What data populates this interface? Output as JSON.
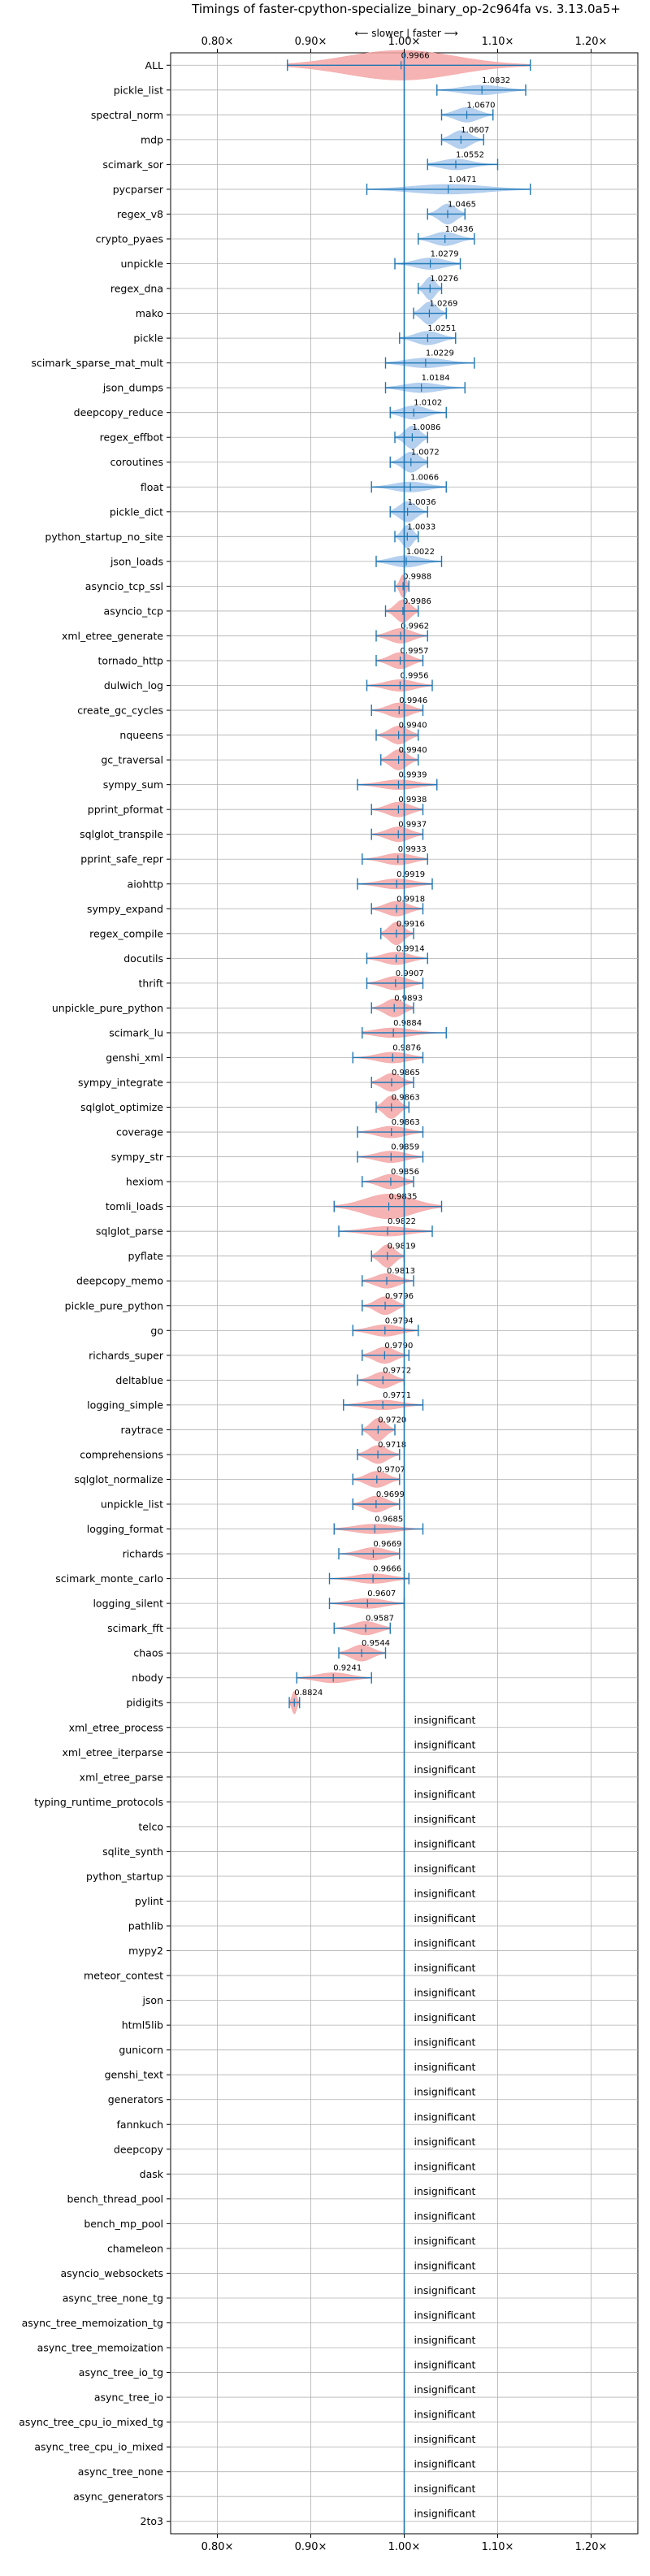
{
  "chart_data": {
    "type": "violin",
    "title": "Timings of faster-cpython-specialize_binary_op-2c964fa vs. 3.13.0a5+",
    "direction_label": "⟵ slower | faster ⟶",
    "xlabel": "",
    "ylabel": "",
    "xlim": [
      0.75,
      1.25
    ],
    "x_ticks": [
      0.8,
      0.9,
      1.0,
      1.1,
      1.2
    ],
    "x_tick_labels": [
      "0.80×",
      "0.90×",
      "1.00×",
      "1.10×",
      "1.20×"
    ],
    "reference_line": 1.0,
    "grid": true,
    "colors": {
      "faster": "#a8c8ec",
      "slower": "#f4a6a6",
      "whisker": "#1f77b4",
      "reference": "#1f77b4",
      "grid": "#b0b0b0"
    },
    "insignificant_label": "insignificant",
    "benchmarks": [
      {
        "name": "ALL",
        "value": 0.9966,
        "label": "0.9966",
        "lo": 0.875,
        "hi": 1.135,
        "width": 0.06
      },
      {
        "name": "pickle_list",
        "value": 1.0832,
        "label": "1.0832",
        "lo": 1.035,
        "hi": 1.13
      },
      {
        "name": "spectral_norm",
        "value": 1.067,
        "label": "1.0670",
        "lo": 1.04,
        "hi": 1.095
      },
      {
        "name": "mdp",
        "value": 1.0607,
        "label": "1.0607",
        "lo": 1.04,
        "hi": 1.085
      },
      {
        "name": "scimark_sor",
        "value": 1.0552,
        "label": "1.0552",
        "lo": 1.025,
        "hi": 1.1
      },
      {
        "name": "pycparser",
        "value": 1.0471,
        "label": "1.0471",
        "lo": 0.96,
        "hi": 1.135
      },
      {
        "name": "regex_v8",
        "value": 1.0465,
        "label": "1.0465",
        "lo": 1.025,
        "hi": 1.065
      },
      {
        "name": "crypto_pyaes",
        "value": 1.0436,
        "label": "1.0436",
        "lo": 1.015,
        "hi": 1.075
      },
      {
        "name": "unpickle",
        "value": 1.0279,
        "label": "1.0279",
        "lo": 0.99,
        "hi": 1.06
      },
      {
        "name": "regex_dna",
        "value": 1.0276,
        "label": "1.0276",
        "lo": 1.015,
        "hi": 1.04
      },
      {
        "name": "mako",
        "value": 1.0269,
        "label": "1.0269",
        "lo": 1.01,
        "hi": 1.045
      },
      {
        "name": "pickle",
        "value": 1.0251,
        "label": "1.0251",
        "lo": 0.995,
        "hi": 1.055
      },
      {
        "name": "scimark_sparse_mat_mult",
        "value": 1.0229,
        "label": "1.0229",
        "lo": 0.98,
        "hi": 1.075
      },
      {
        "name": "json_dumps",
        "value": 1.0184,
        "label": "1.0184",
        "lo": 0.98,
        "hi": 1.065
      },
      {
        "name": "deepcopy_reduce",
        "value": 1.0102,
        "label": "1.0102",
        "lo": 0.985,
        "hi": 1.045
      },
      {
        "name": "regex_effbot",
        "value": 1.0086,
        "label": "1.0086",
        "lo": 0.99,
        "hi": 1.025
      },
      {
        "name": "coroutines",
        "value": 1.0072,
        "label": "1.0072",
        "lo": 0.985,
        "hi": 1.025
      },
      {
        "name": "float",
        "value": 1.0066,
        "label": "1.0066",
        "lo": 0.965,
        "hi": 1.045
      },
      {
        "name": "pickle_dict",
        "value": 1.0036,
        "label": "1.0036",
        "lo": 0.985,
        "hi": 1.025
      },
      {
        "name": "python_startup_no_site",
        "value": 1.0033,
        "label": "1.0033",
        "lo": 0.99,
        "hi": 1.015
      },
      {
        "name": "json_loads",
        "value": 1.0022,
        "label": "1.0022",
        "lo": 0.97,
        "hi": 1.04
      },
      {
        "name": "asyncio_tcp_ssl",
        "value": 0.9988,
        "label": "0.9988",
        "lo": 0.99,
        "hi": 1.005
      },
      {
        "name": "asyncio_tcp",
        "value": 0.9986,
        "label": "0.9986",
        "lo": 0.98,
        "hi": 1.015
      },
      {
        "name": "xml_etree_generate",
        "value": 0.9962,
        "label": "0.9962",
        "lo": 0.97,
        "hi": 1.025
      },
      {
        "name": "tornado_http",
        "value": 0.9957,
        "label": "0.9957",
        "lo": 0.97,
        "hi": 1.02
      },
      {
        "name": "dulwich_log",
        "value": 0.9956,
        "label": "0.9956",
        "lo": 0.96,
        "hi": 1.03
      },
      {
        "name": "create_gc_cycles",
        "value": 0.9946,
        "label": "0.9946",
        "lo": 0.965,
        "hi": 1.02
      },
      {
        "name": "nqueens",
        "value": 0.994,
        "label": "0.9940",
        "lo": 0.97,
        "hi": 1.015
      },
      {
        "name": "gc_traversal",
        "value": 0.994,
        "label": "0.9940",
        "lo": 0.975,
        "hi": 1.015
      },
      {
        "name": "sympy_sum",
        "value": 0.9939,
        "label": "0.9939",
        "lo": 0.95,
        "hi": 1.035
      },
      {
        "name": "pprint_pformat",
        "value": 0.9938,
        "label": "0.9938",
        "lo": 0.965,
        "hi": 1.02
      },
      {
        "name": "sqlglot_transpile",
        "value": 0.9937,
        "label": "0.9937",
        "lo": 0.965,
        "hi": 1.02
      },
      {
        "name": "pprint_safe_repr",
        "value": 0.9933,
        "label": "0.9933",
        "lo": 0.955,
        "hi": 1.025
      },
      {
        "name": "aiohttp",
        "value": 0.9919,
        "label": "0.9919",
        "lo": 0.95,
        "hi": 1.03
      },
      {
        "name": "sympy_expand",
        "value": 0.9918,
        "label": "0.9918",
        "lo": 0.965,
        "hi": 1.02
      },
      {
        "name": "regex_compile",
        "value": 0.9916,
        "label": "0.9916",
        "lo": 0.975,
        "hi": 1.01
      },
      {
        "name": "docutils",
        "value": 0.9914,
        "label": "0.9914",
        "lo": 0.96,
        "hi": 1.025
      },
      {
        "name": "thrift",
        "value": 0.9907,
        "label": "0.9907",
        "lo": 0.96,
        "hi": 1.02
      },
      {
        "name": "unpickle_pure_python",
        "value": 0.9893,
        "label": "0.9893",
        "lo": 0.965,
        "hi": 1.01
      },
      {
        "name": "scimark_lu",
        "value": 0.9884,
        "label": "0.9884",
        "lo": 0.955,
        "hi": 1.045
      },
      {
        "name": "genshi_xml",
        "value": 0.9876,
        "label": "0.9876",
        "lo": 0.945,
        "hi": 1.02
      },
      {
        "name": "sympy_integrate",
        "value": 0.9865,
        "label": "0.9865",
        "lo": 0.965,
        "hi": 1.01
      },
      {
        "name": "sqlglot_optimize",
        "value": 0.9863,
        "label": "0.9863",
        "lo": 0.97,
        "hi": 1.005
      },
      {
        "name": "coverage",
        "value": 0.9863,
        "label": "0.9863",
        "lo": 0.95,
        "hi": 1.02
      },
      {
        "name": "sympy_str",
        "value": 0.9859,
        "label": "0.9859",
        "lo": 0.95,
        "hi": 1.02
      },
      {
        "name": "hexiom",
        "value": 0.9856,
        "label": "0.9856",
        "lo": 0.955,
        "hi": 1.01
      },
      {
        "name": "tomli_loads",
        "value": 0.9835,
        "label": "0.9835",
        "lo": 0.925,
        "hi": 1.04,
        "width": 0.05
      },
      {
        "name": "sqlglot_parse",
        "value": 0.9822,
        "label": "0.9822",
        "lo": 0.93,
        "hi": 1.03
      },
      {
        "name": "pyflate",
        "value": 0.9819,
        "label": "0.9819",
        "lo": 0.965,
        "hi": 1.0
      },
      {
        "name": "deepcopy_memo",
        "value": 0.9813,
        "label": "0.9813",
        "lo": 0.955,
        "hi": 1.01
      },
      {
        "name": "pickle_pure_python",
        "value": 0.9796,
        "label": "0.9796",
        "lo": 0.955,
        "hi": 1.0
      },
      {
        "name": "go",
        "value": 0.9794,
        "label": "0.9794",
        "lo": 0.945,
        "hi": 1.015
      },
      {
        "name": "richards_super",
        "value": 0.979,
        "label": "0.9790",
        "lo": 0.955,
        "hi": 1.005
      },
      {
        "name": "deltablue",
        "value": 0.9772,
        "label": "0.9772",
        "lo": 0.95,
        "hi": 1.0
      },
      {
        "name": "logging_simple",
        "value": 0.9771,
        "label": "0.9771",
        "lo": 0.935,
        "hi": 1.02
      },
      {
        "name": "raytrace",
        "value": 0.972,
        "label": "0.9720",
        "lo": 0.955,
        "hi": 0.99
      },
      {
        "name": "comprehensions",
        "value": 0.9718,
        "label": "0.9718",
        "lo": 0.95,
        "hi": 0.995
      },
      {
        "name": "sqlglot_normalize",
        "value": 0.9707,
        "label": "0.9707",
        "lo": 0.945,
        "hi": 0.995
      },
      {
        "name": "unpickle_list",
        "value": 0.9699,
        "label": "0.9699",
        "lo": 0.945,
        "hi": 0.995
      },
      {
        "name": "logging_format",
        "value": 0.9685,
        "label": "0.9685",
        "lo": 0.925,
        "hi": 1.02
      },
      {
        "name": "richards",
        "value": 0.9669,
        "label": "0.9669",
        "lo": 0.93,
        "hi": 0.995
      },
      {
        "name": "scimark_monte_carlo",
        "value": 0.9666,
        "label": "0.9666",
        "lo": 0.92,
        "hi": 1.005
      },
      {
        "name": "logging_silent",
        "value": 0.9607,
        "label": "0.9607",
        "lo": 0.92,
        "hi": 1.0
      },
      {
        "name": "scimark_fft",
        "value": 0.9587,
        "label": "0.9587",
        "lo": 0.925,
        "hi": 0.985
      },
      {
        "name": "chaos",
        "value": 0.9544,
        "label": "0.9544",
        "lo": 0.93,
        "hi": 0.98
      },
      {
        "name": "nbody",
        "value": 0.9241,
        "label": "0.9241",
        "lo": 0.885,
        "hi": 0.965
      },
      {
        "name": "pidigits",
        "value": 0.8824,
        "label": "0.8824",
        "lo": 0.877,
        "hi": 0.888
      }
    ],
    "insignificant": [
      "xml_etree_process",
      "xml_etree_iterparse",
      "xml_etree_parse",
      "typing_runtime_protocols",
      "telco",
      "sqlite_synth",
      "python_startup",
      "pylint",
      "pathlib",
      "mypy2",
      "meteor_contest",
      "json",
      "html5lib",
      "gunicorn",
      "genshi_text",
      "generators",
      "fannkuch",
      "deepcopy",
      "dask",
      "bench_thread_pool",
      "bench_mp_pool",
      "chameleon",
      "asyncio_websockets",
      "async_tree_none_tg",
      "async_tree_memoization_tg",
      "async_tree_memoization",
      "async_tree_io_tg",
      "async_tree_io",
      "async_tree_cpu_io_mixed_tg",
      "async_tree_cpu_io_mixed",
      "async_tree_none",
      "async_generators",
      "2to3"
    ]
  }
}
